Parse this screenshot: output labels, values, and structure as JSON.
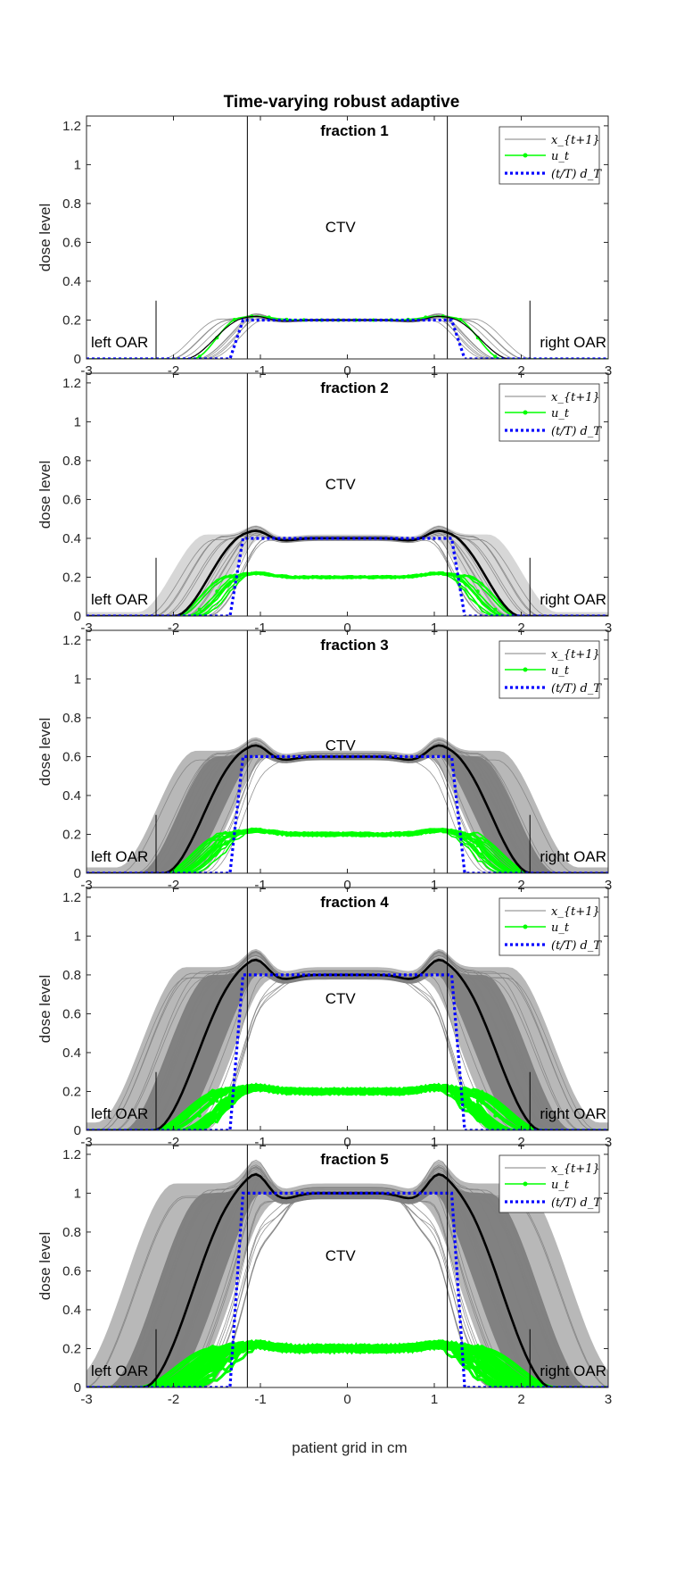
{
  "figure": {
    "title": "Time-varying robust adaptive",
    "xlabel": "patient grid in cm",
    "ylabel": "dose level"
  },
  "annotations": {
    "ctv": "CTV",
    "left_oar": "left OAR",
    "right_oar": "right OAR"
  },
  "legend": [
    {
      "name": "x_{t+1}",
      "color": "#808080"
    },
    {
      "name": "u_t",
      "color": "#00ff00"
    },
    {
      "name": "(t/T) d_T",
      "color": "#0000ff"
    }
  ],
  "colors": {
    "scenario": "#808080",
    "mean_dose": "#000000",
    "beam": "#00ff00",
    "prescription": "#0000ff",
    "envelope_outer": "#b0b0b0",
    "envelope_inner": "#777777"
  },
  "chart_data": {
    "type": "line",
    "xlim": [
      -3,
      3
    ],
    "ylim": [
      0,
      1.25
    ],
    "xticks": [
      -3,
      -2,
      -1,
      0,
      1,
      2,
      3
    ],
    "yticks": [
      0,
      0.2,
      0.4,
      0.6,
      0.8,
      1,
      1.2
    ],
    "ctv_bounds": [
      -1.15,
      1.15
    ],
    "oar_markers": [
      -2.2,
      2.1
    ],
    "panels": [
      {
        "title": "fraction  1",
        "fraction": 1,
        "target": 0.2,
        "beam": 0.2,
        "ctv_label_y": 0.68
      },
      {
        "title": "fraction  2",
        "fraction": 2,
        "target": 0.4,
        "beam": 0.2,
        "ctv_label_y": 0.68
      },
      {
        "title": "fraction  3",
        "fraction": 3,
        "target": 0.6,
        "beam": 0.2,
        "ctv_label_y": 0.66
      },
      {
        "title": "fraction  4",
        "fraction": 4,
        "target": 0.8,
        "beam": 0.2,
        "ctv_label_y": 0.68
      },
      {
        "title": "fraction  5",
        "fraction": 5,
        "target": 1.0,
        "beam": 0.2,
        "ctv_label_y": 0.68
      }
    ]
  }
}
